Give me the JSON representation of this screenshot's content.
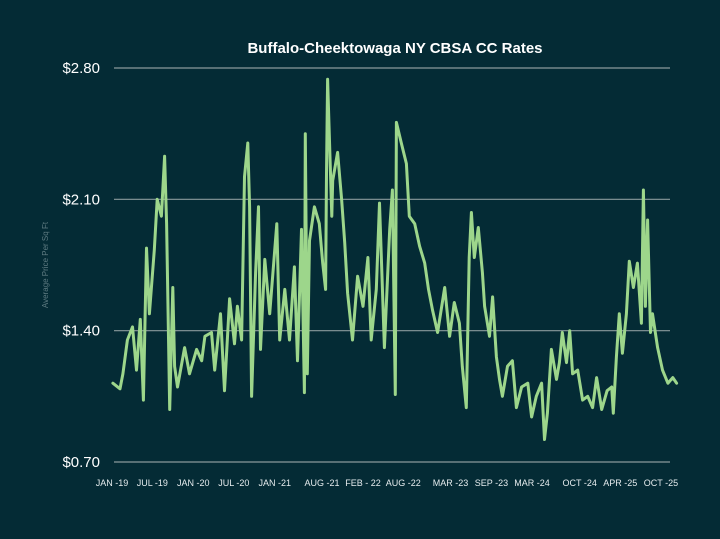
{
  "chart_data": {
    "type": "line",
    "title": "Buffalo-Cheektowaga NY CBSA CC Rates",
    "xlabel": "",
    "ylabel": "Average Price Per Sq Ft",
    "xlim": [
      "2019-01-01",
      "2025-12-12"
    ],
    "ylim": [
      0.7,
      2.8
    ],
    "yticks": [
      0.7,
      1.4,
      2.1,
      2.8
    ],
    "ytick_labels": [
      "$0.70",
      "$1.40",
      "$2.10",
      "$2.80"
    ],
    "xticks": [
      "2019-01-01",
      "2019-07-01",
      "2020-01-01",
      "2020-07-01",
      "2021-01-01",
      "2021-08-01",
      "2022-02-01",
      "2022-08-01",
      "2023-03-01",
      "2023-09-01",
      "2024-03-01",
      "2024-10-01",
      "2025-04-01",
      "2025-10-01"
    ],
    "xtick_labels": [
      "JAN -19",
      "JUL -19",
      "JAN -20",
      "JUL -20",
      "JAN -21",
      "AUG -21",
      "FEB - 22",
      "AUG -22",
      "MAR -23",
      "SEP -23",
      "MAR -24",
      "OCT -24",
      "APR -25",
      "OCT -25"
    ],
    "grid": "horizontal",
    "legend": "none",
    "colors": {
      "background": "#042b35",
      "line": "#9dd68b",
      "grid": "#8a9a9c",
      "title": "#ffffff"
    },
    "series": [
      {
        "x": [
          "2019-01-05",
          "2019-02-06",
          "2019-02-19",
          "2019-03-11",
          "2019-04-03",
          "2019-04-21",
          "2019-05-08",
          "2019-05-22",
          "2019-06-05",
          "2019-06-18",
          "2019-07-10",
          "2019-07-23",
          "2019-08-11",
          "2019-08-25",
          "2019-09-03",
          "2019-09-17",
          "2019-10-01",
          "2019-10-09",
          "2019-10-22",
          "2019-11-23",
          "2019-12-15",
          "2020-01-16",
          "2020-02-08",
          "2020-02-22",
          "2020-03-23",
          "2020-04-06",
          "2020-05-02",
          "2020-05-20",
          "2020-06-12",
          "2020-07-04",
          "2020-07-17",
          "2020-08-05",
          "2020-08-18",
          "2020-09-02",
          "2020-09-10",
          "2020-09-19",
          "2020-10-07",
          "2020-10-20",
          "2020-10-29",
          "2020-11-17",
          "2020-12-09",
          "2021-01-10",
          "2021-01-23",
          "2021-02-15",
          "2021-03-08",
          "2021-03-30",
          "2021-04-13",
          "2021-05-01",
          "2021-05-14",
          "2021-05-18",
          "2021-05-27",
          "2021-06-06",
          "2021-06-28",
          "2021-07-20",
          "2021-08-04",
          "2021-08-17",
          "2021-08-21",
          "2021-08-26",
          "2021-09-14",
          "2021-09-18",
          "2021-10-10",
          "2021-10-28",
          "2021-11-11",
          "2021-11-24",
          "2021-12-16",
          "2022-01-08",
          "2022-02-01",
          "2022-02-23",
          "2022-03-10",
          "2022-04-02",
          "2022-04-16",
          "2022-05-08",
          "2022-06-01",
          "2022-06-13",
          "2022-06-26",
          "2022-07-01",
          "2022-07-23",
          "2022-08-15",
          "2022-08-28",
          "2022-09-21",
          "2022-10-13",
          "2022-11-05",
          "2022-11-22",
          "2022-12-10",
          "2023-01-02",
          "2023-02-03",
          "2023-02-25",
          "2023-03-18",
          "2023-04-10",
          "2023-04-23",
          "2023-05-11",
          "2023-05-24",
          "2023-06-03",
          "2023-06-16",
          "2023-07-04",
          "2023-07-22",
          "2023-08-01",
          "2023-08-23",
          "2023-09-06",
          "2023-09-23",
          "2023-10-07",
          "2023-10-20",
          "2023-11-12",
          "2023-12-04",
          "2023-12-22",
          "2024-01-14",
          "2024-02-11",
          "2024-02-28",
          "2024-03-20",
          "2024-04-13",
          "2024-04-26",
          "2024-05-09",
          "2024-05-27",
          "2024-06-19",
          "2024-07-02",
          "2024-07-15",
          "2024-08-03",
          "2024-08-17",
          "2024-08-30",
          "2024-09-22",
          "2024-10-14",
          "2024-11-06",
          "2024-11-28",
          "2024-12-16",
          "2025-01-08",
          "2025-02-01",
          "2025-02-22",
          "2025-03-01",
          "2025-03-15",
          "2025-03-28",
          "2025-04-11",
          "2025-04-29",
          "2025-05-12",
          "2025-05-30",
          "2025-06-17",
          "2025-07-05",
          "2025-07-14",
          "2025-07-23",
          "2025-08-02",
          "2025-08-15",
          "2025-08-24",
          "2025-09-16",
          "2025-10-08",
          "2025-11-01",
          "2025-11-23",
          "2025-12-10"
        ],
        "y": [
          1.12,
          1.09,
          1.17,
          1.35,
          1.42,
          1.19,
          1.46,
          1.03,
          1.84,
          1.49,
          1.83,
          2.1,
          2.01,
          2.33,
          1.97,
          0.98,
          1.63,
          1.21,
          1.1,
          1.31,
          1.17,
          1.3,
          1.24,
          1.37,
          1.39,
          1.19,
          1.49,
          1.08,
          1.57,
          1.33,
          1.53,
          1.35,
          2.22,
          2.4,
          2.06,
          1.05,
          1.71,
          2.06,
          1.3,
          1.78,
          1.49,
          1.97,
          1.35,
          1.62,
          1.35,
          1.74,
          1.24,
          1.94,
          1.07,
          2.45,
          1.17,
          1.88,
          2.06,
          1.97,
          1.76,
          1.62,
          2.24,
          2.74,
          2.01,
          2.2,
          2.35,
          2.1,
          1.87,
          1.6,
          1.35,
          1.69,
          1.53,
          1.79,
          1.35,
          1.62,
          2.08,
          1.31,
          1.94,
          2.15,
          1.06,
          2.51,
          2.4,
          2.29,
          2.01,
          1.97,
          1.85,
          1.76,
          1.62,
          1.51,
          1.39,
          1.63,
          1.37,
          1.55,
          1.44,
          1.21,
          0.99,
          1.79,
          2.03,
          1.79,
          1.95,
          1.71,
          1.53,
          1.37,
          1.58,
          1.26,
          1.14,
          1.05,
          1.21,
          1.24,
          0.99,
          1.1,
          1.12,
          0.94,
          1.05,
          1.12,
          0.82,
          0.96,
          1.3,
          1.14,
          1.23,
          1.39,
          1.23,
          1.4,
          1.17,
          1.19,
          1.03,
          1.05,
          0.99,
          1.15,
          0.98,
          1.08,
          1.1,
          0.96,
          1.26,
          1.49,
          1.28,
          1.49,
          1.77,
          1.63,
          1.76,
          1.44,
          2.15,
          1.53,
          1.99,
          1.39,
          1.49,
          1.31,
          1.19,
          1.12,
          1.15,
          1.12
        ]
      }
    ]
  }
}
